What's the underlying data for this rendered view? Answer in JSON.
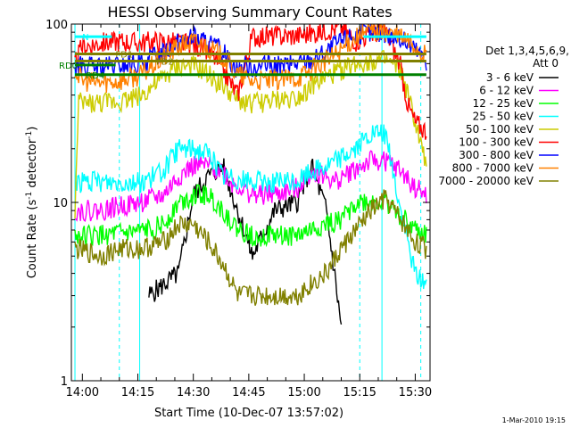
{
  "chart_data": {
    "type": "line",
    "title": "HESSI Observing Summary Count Rates",
    "xlabel": "Start Time (10-Dec-07 13:57:02)",
    "ylabel_main": "Count Rate (s",
    "ylabel_sup": "-1",
    "ylabel_tail": " detector",
    "ylabel_end": ")",
    "x_scale": "time",
    "x_start_min": 837.03,
    "x_end_min": 934,
    "y_scale": "log",
    "ylim": [
      1,
      100
    ],
    "grid": false,
    "x_ticks": [
      {
        "label": "14:00",
        "min": 840
      },
      {
        "label": "14:15",
        "min": 855
      },
      {
        "label": "14:30",
        "min": 870
      },
      {
        "label": "14:45",
        "min": 885
      },
      {
        "label": "15:00",
        "min": 900
      },
      {
        "label": "15:15",
        "min": 915
      },
      {
        "label": "15:30",
        "min": 930
      }
    ],
    "y_ticks": [
      {
        "label": "1",
        "value": 1
      },
      {
        "label": "10",
        "value": 10
      },
      {
        "label": "100",
        "value": 100
      }
    ],
    "legend_position": "right",
    "legend_header": [
      "Det 1,3,4,5,6,9,",
      "Att 0"
    ],
    "series": [
      {
        "name": "3 - 6 keV",
        "color": "#000000",
        "points": [
          [
            858,
            3.0
          ],
          [
            866,
            4.0
          ],
          [
            870,
            11
          ],
          [
            874,
            14
          ],
          [
            878,
            16
          ],
          [
            882,
            9
          ],
          [
            886,
            5
          ],
          [
            892,
            9
          ],
          [
            898,
            10
          ],
          [
            902,
            16
          ],
          [
            906,
            9
          ],
          [
            910,
            2
          ]
        ]
      },
      {
        "name": "6 - 12 keV",
        "color": "#ff00ff",
        "points": [
          [
            838,
            9.0
          ],
          [
            845,
            9.0
          ],
          [
            850,
            9.5
          ],
          [
            856,
            10
          ],
          [
            862,
            11
          ],
          [
            866,
            14
          ],
          [
            870,
            16
          ],
          [
            874,
            16
          ],
          [
            878,
            15
          ],
          [
            880,
            13
          ],
          [
            886,
            11
          ],
          [
            892,
            11
          ],
          [
            898,
            12
          ],
          [
            902,
            15
          ],
          [
            906,
            14
          ],
          [
            908,
            13
          ],
          [
            913,
            15
          ],
          [
            918,
            17
          ],
          [
            922,
            17
          ],
          [
            926,
            15
          ],
          [
            930,
            12
          ],
          [
            933,
            11
          ]
        ]
      },
      {
        "name": "12 - 25 keV",
        "color": "#00ff00",
        "points": [
          [
            838,
            6.5
          ],
          [
            845,
            6.5
          ],
          [
            856,
            6.8
          ],
          [
            862,
            7.5
          ],
          [
            866,
            10
          ],
          [
            870,
            11
          ],
          [
            874,
            11
          ],
          [
            878,
            9
          ],
          [
            882,
            7
          ],
          [
            886,
            6.5
          ],
          [
            892,
            6.5
          ],
          [
            898,
            6.5
          ],
          [
            902,
            7
          ],
          [
            906,
            7.5
          ],
          [
            910,
            8
          ],
          [
            914,
            10
          ],
          [
            918,
            10
          ],
          [
            922,
            10
          ],
          [
            926,
            8.5
          ],
          [
            930,
            7
          ],
          [
            933,
            6.5
          ]
        ]
      },
      {
        "name": "25 - 50 keV",
        "color": "#00ffff",
        "points": [
          [
            838,
            13
          ],
          [
            845,
            13
          ],
          [
            850,
            13
          ],
          [
            856,
            13
          ],
          [
            862,
            15
          ],
          [
            866,
            20
          ],
          [
            870,
            20
          ],
          [
            874,
            19
          ],
          [
            878,
            14
          ],
          [
            886,
            13
          ],
          [
            892,
            13
          ],
          [
            898,
            13
          ],
          [
            902,
            15
          ],
          [
            906,
            16
          ],
          [
            910,
            18
          ],
          [
            914,
            20
          ],
          [
            918,
            24
          ],
          [
            922,
            24
          ],
          [
            926,
            9
          ],
          [
            930,
            4
          ],
          [
            933,
            3.5
          ]
        ]
      },
      {
        "name": "50 - 100 keV",
        "color": "#cccc00",
        "points": [
          [
            838,
            9
          ],
          [
            839,
            36
          ],
          [
            845,
            36
          ],
          [
            850,
            37
          ],
          [
            856,
            40
          ],
          [
            862,
            50
          ],
          [
            866,
            58
          ],
          [
            870,
            58
          ],
          [
            874,
            52
          ],
          [
            878,
            45
          ],
          [
            882,
            37
          ],
          [
            886,
            36
          ],
          [
            892,
            37
          ],
          [
            898,
            39
          ],
          [
            902,
            45
          ],
          [
            906,
            50
          ],
          [
            910,
            55
          ],
          [
            914,
            60
          ],
          [
            918,
            62
          ],
          [
            922,
            62
          ],
          [
            926,
            55
          ],
          [
            928,
            40
          ],
          [
            930,
            28
          ],
          [
            933,
            16
          ]
        ]
      },
      {
        "name": "100 - 300 keV",
        "color": "#ff0000",
        "points": [
          [
            838,
            60
          ],
          [
            840,
            75
          ],
          [
            845,
            78
          ],
          [
            850,
            80
          ],
          [
            855,
            78
          ],
          [
            860,
            80
          ],
          [
            866,
            78
          ],
          [
            870,
            76
          ],
          [
            874,
            72
          ],
          [
            878,
            55
          ],
          [
            882,
            40
          ],
          [
            886,
            85
          ],
          [
            892,
            85
          ],
          [
            898,
            86
          ],
          [
            902,
            88
          ],
          [
            906,
            92
          ],
          [
            910,
            96
          ],
          [
            914,
            80
          ],
          [
            918,
            88
          ],
          [
            922,
            92
          ],
          [
            926,
            58
          ],
          [
            928,
            35
          ],
          [
            930,
            28
          ],
          [
            933,
            25
          ]
        ]
      },
      {
        "name": "300 - 800 keV",
        "color": "#0000ff",
        "points": [
          [
            838,
            58
          ],
          [
            845,
            57
          ],
          [
            850,
            58
          ],
          [
            856,
            60
          ],
          [
            862,
            70
          ],
          [
            866,
            80
          ],
          [
            870,
            85
          ],
          [
            874,
            78
          ],
          [
            878,
            70
          ],
          [
            882,
            56
          ],
          [
            886,
            58
          ],
          [
            892,
            58
          ],
          [
            898,
            60
          ],
          [
            902,
            63
          ],
          [
            906,
            70
          ],
          [
            910,
            80
          ],
          [
            914,
            88
          ],
          [
            918,
            90
          ],
          [
            922,
            88
          ],
          [
            926,
            82
          ],
          [
            930,
            72
          ],
          [
            933,
            62
          ]
        ]
      },
      {
        "name": "800 - 7000 keV",
        "color": "#ff8000",
        "points": [
          [
            838,
            55
          ],
          [
            840,
            48
          ],
          [
            845,
            47
          ],
          [
            850,
            48
          ],
          [
            856,
            52
          ],
          [
            862,
            65
          ],
          [
            866,
            75
          ],
          [
            870,
            80
          ],
          [
            874,
            74
          ],
          [
            878,
            65
          ],
          [
            882,
            52
          ],
          [
            886,
            48
          ],
          [
            892,
            48
          ],
          [
            898,
            50
          ],
          [
            902,
            55
          ],
          [
            906,
            62
          ],
          [
            910,
            72
          ],
          [
            914,
            85
          ],
          [
            918,
            92
          ],
          [
            922,
            90
          ],
          [
            926,
            85
          ],
          [
            930,
            75
          ],
          [
            933,
            65
          ]
        ]
      },
      {
        "name": "7000 - 20000 keV",
        "color": "#808000",
        "points": [
          [
            838,
            5.5
          ],
          [
            845,
            5
          ],
          [
            850,
            5.5
          ],
          [
            856,
            5.5
          ],
          [
            862,
            6
          ],
          [
            866,
            7.5
          ],
          [
            870,
            7.5
          ],
          [
            874,
            6
          ],
          [
            878,
            4.5
          ],
          [
            882,
            3
          ],
          [
            886,
            3
          ],
          [
            892,
            3
          ],
          [
            898,
            3
          ],
          [
            902,
            3.5
          ],
          [
            906,
            4
          ],
          [
            910,
            5.5
          ],
          [
            914,
            7
          ],
          [
            918,
            9
          ],
          [
            922,
            10.5
          ],
          [
            926,
            8
          ],
          [
            930,
            6
          ],
          [
            933,
            5.5
          ]
        ]
      }
    ],
    "flag_bars": [
      {
        "label": "N",
        "color": "#00ffff",
        "y": 85,
        "x1": 838,
        "x2": 848
      },
      {
        "label": "",
        "color": "#00ffff",
        "y": 85,
        "x1": 916,
        "x2": 933
      },
      {
        "label": "FD1",
        "color": "#808000",
        "y": 68,
        "x1": 838,
        "x2": 933
      },
      {
        "label": "FD2",
        "color": "#808000",
        "y": 62,
        "x1": 838,
        "x2": 933
      },
      {
        "label": "RD0",
        "color": "#008000",
        "y": 59,
        "x1": 838,
        "x2": 849
      },
      {
        "label": "RD4",
        "color": "#008000",
        "y": 52,
        "x1": 838,
        "x2": 933
      }
    ],
    "vlines_solid": [
      {
        "min": 838,
        "color": "#00ffff"
      },
      {
        "min": 855.5,
        "color": "#00ffff"
      },
      {
        "min": 921,
        "color": "#00ffff"
      }
    ],
    "vlines_dashed": [
      {
        "min": 850,
        "color": "#00ffff"
      },
      {
        "min": 915,
        "color": "#00ffff"
      },
      {
        "min": 931.5,
        "color": "#00ffff"
      }
    ]
  },
  "footer_stamp": "1-Mar-2010 19:15"
}
